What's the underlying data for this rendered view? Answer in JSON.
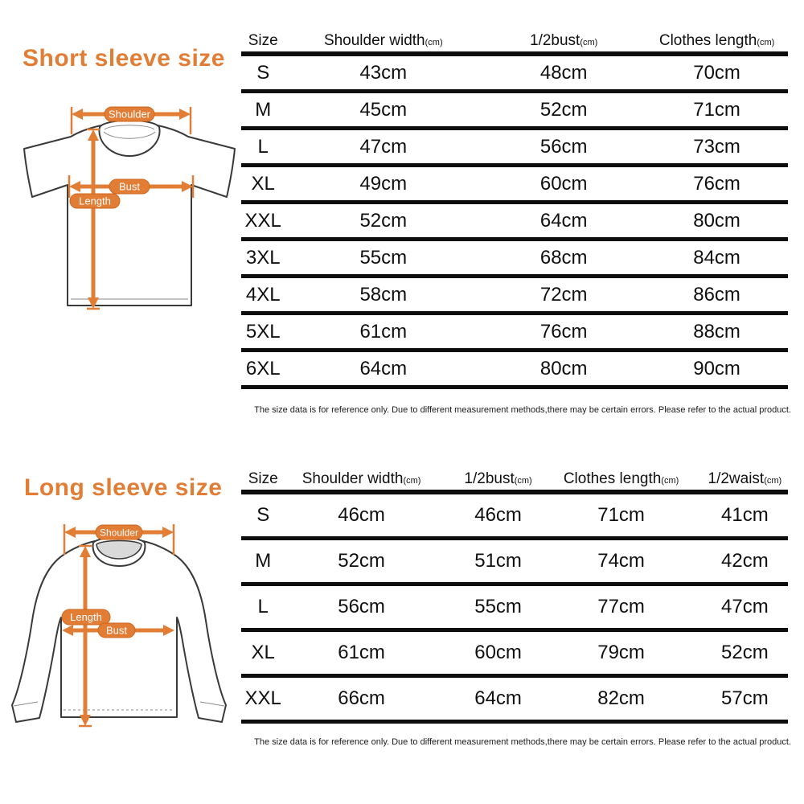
{
  "accent_color": "#e27d35",
  "sections": [
    {
      "title": "Short sleeve size",
      "diagram": {
        "shoulder_label": "Shoulder",
        "bust_label": "Bust",
        "length_label": "Length"
      },
      "table": {
        "columns": [
          {
            "label": "Size",
            "unit": ""
          },
          {
            "label": "Shoulder width",
            "unit": "(cm)"
          },
          {
            "label": "1/2bust",
            "unit": "(cm)"
          },
          {
            "label": "Clothes length",
            "unit": "(cm)"
          }
        ],
        "rows": [
          [
            "S",
            "43cm",
            "48cm",
            "70cm"
          ],
          [
            "M",
            "45cm",
            "52cm",
            "71cm"
          ],
          [
            "L",
            "47cm",
            "56cm",
            "73cm"
          ],
          [
            "XL",
            "49cm",
            "60cm",
            "76cm"
          ],
          [
            "XXL",
            "52cm",
            "64cm",
            "80cm"
          ],
          [
            "3XL",
            "55cm",
            "68cm",
            "84cm"
          ],
          [
            "4XL",
            "58cm",
            "72cm",
            "86cm"
          ],
          [
            "5XL",
            "61cm",
            "76cm",
            "88cm"
          ],
          [
            "6XL",
            "64cm",
            "80cm",
            "90cm"
          ]
        ]
      },
      "note": "The size data is for reference only. Due to different measurement methods,there may be certain errors. Please refer to the actual product."
    },
    {
      "title": "Long sleeve size",
      "diagram": {
        "shoulder_label": "Shoulder",
        "bust_label": "Bust",
        "length_label": "Length"
      },
      "table": {
        "columns": [
          {
            "label": "Size",
            "unit": ""
          },
          {
            "label": "Shoulder width",
            "unit": "(cm)"
          },
          {
            "label": "1/2bust",
            "unit": "(cm)"
          },
          {
            "label": "Clothes length",
            "unit": "(cm)"
          },
          {
            "label": "1/2waist",
            "unit": "(cm)"
          }
        ],
        "rows": [
          [
            "S",
            "46cm",
            "46cm",
            "71cm",
            "41cm"
          ],
          [
            "M",
            "52cm",
            "51cm",
            "74cm",
            "42cm"
          ],
          [
            "L",
            "56cm",
            "55cm",
            "77cm",
            "47cm"
          ],
          [
            "XL",
            "61cm",
            "60cm",
            "79cm",
            "52cm"
          ],
          [
            "XXL",
            "66cm",
            "64cm",
            "82cm",
            "57cm"
          ]
        ]
      },
      "note": "The size data is for reference only. Due to different measurement methods,there may be certain errors. Please refer to the actual product."
    }
  ]
}
